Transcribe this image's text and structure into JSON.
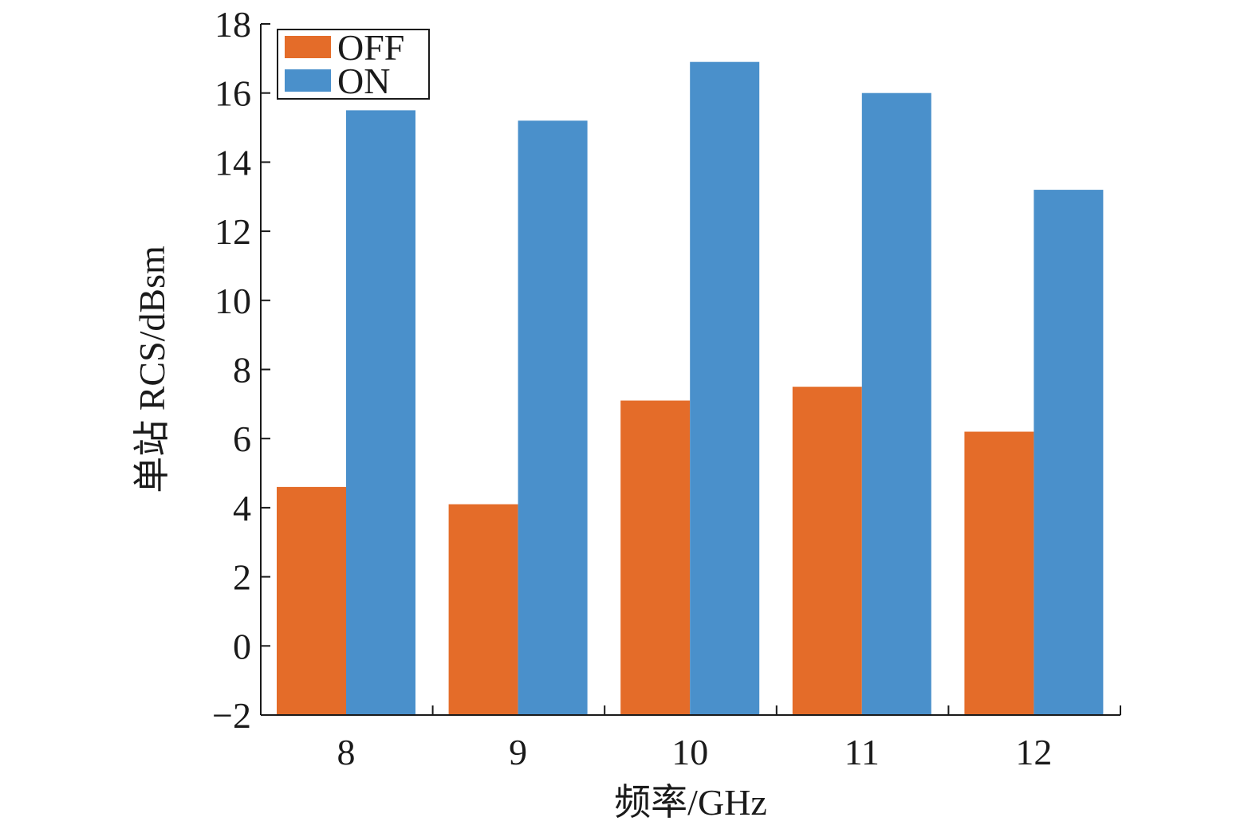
{
  "chart_data": {
    "type": "bar",
    "categories": [
      "8",
      "9",
      "10",
      "11",
      "12"
    ],
    "series": [
      {
        "name": "OFF",
        "values": [
          4.6,
          4.1,
          7.1,
          7.5,
          6.2
        ],
        "color": "#E46C29"
      },
      {
        "name": "ON",
        "values": [
          15.5,
          15.2,
          16.9,
          16.0,
          13.2
        ],
        "color": "#4A90CB"
      }
    ],
    "title": "",
    "xlabel": "频率/GHz",
    "ylabel": "单站 RCS/dBsm",
    "ylim": [
      -2,
      18
    ],
    "yticks": [
      -2,
      0,
      2,
      4,
      6,
      8,
      10,
      12,
      14,
      16,
      18
    ],
    "ytick_labels": [
      "−2",
      "0",
      "2",
      "4",
      "6",
      "8",
      "10",
      "12",
      "14",
      "16",
      "18"
    ],
    "grid": false,
    "legend_position": "top-left"
  }
}
